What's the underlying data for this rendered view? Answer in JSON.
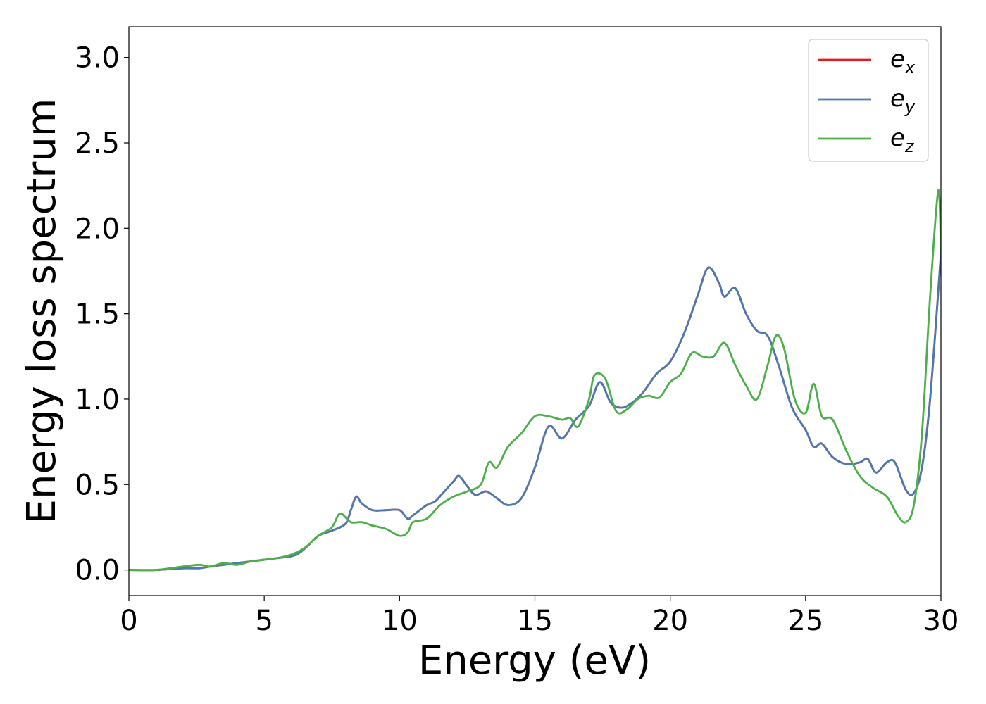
{
  "chart_data": {
    "type": "line",
    "xlabel": "Energy (eV)",
    "ylabel": "Energy loss spectrum",
    "xlim": [
      0,
      30
    ],
    "ylim": [
      -0.15,
      3.18
    ],
    "xticks": [
      0,
      5,
      10,
      15,
      20,
      25,
      30
    ],
    "xtick_labels": [
      "0",
      "5",
      "10",
      "15",
      "20",
      "25",
      "30"
    ],
    "yticks": [
      0.0,
      0.5,
      1.0,
      1.5,
      2.0,
      2.5,
      3.0
    ],
    "ytick_labels": [
      "0.0",
      "0.5",
      "1.0",
      "1.5",
      "2.0",
      "2.5",
      "3.0"
    ],
    "grid": false,
    "legend_position": "top-right",
    "series": [
      {
        "name": "e",
        "subscript": "x",
        "color": "#e41a1c",
        "x": [
          0,
          1,
          2,
          2.6,
          3,
          3.5,
          4,
          4.5,
          5,
          5.5,
          6,
          6.3,
          6.6,
          7,
          7.5,
          8,
          8.2,
          8.4,
          8.6,
          9,
          9.5,
          10,
          10.3,
          10.5,
          11,
          11.3,
          11.6,
          12,
          12.2,
          12.5,
          12.8,
          13.2,
          13.6,
          14,
          14.5,
          15,
          15.5,
          16,
          16.5,
          17,
          17.4,
          17.8,
          18.2,
          18.6,
          19,
          19.5,
          20,
          20.5,
          21,
          21.4,
          21.8,
          22,
          22.4,
          22.8,
          23.2,
          23.6,
          24,
          24.5,
          25,
          25.3,
          25.6,
          26,
          26.5,
          27,
          27.3,
          27.6,
          28,
          28.3,
          28.7,
          29,
          29.3,
          29.6,
          30
        ],
        "y": [
          0,
          0,
          0.01,
          0.01,
          0.02,
          0.03,
          0.04,
          0.05,
          0.06,
          0.07,
          0.08,
          0.1,
          0.14,
          0.2,
          0.23,
          0.27,
          0.35,
          0.43,
          0.39,
          0.35,
          0.35,
          0.35,
          0.3,
          0.32,
          0.38,
          0.4,
          0.45,
          0.52,
          0.55,
          0.49,
          0.44,
          0.46,
          0.42,
          0.38,
          0.42,
          0.6,
          0.84,
          0.77,
          0.88,
          0.96,
          1.1,
          0.98,
          0.95,
          0.98,
          1.04,
          1.15,
          1.22,
          1.38,
          1.6,
          1.77,
          1.68,
          1.6,
          1.65,
          1.5,
          1.4,
          1.37,
          1.2,
          0.95,
          0.82,
          0.72,
          0.74,
          0.66,
          0.62,
          0.63,
          0.65,
          0.57,
          0.63,
          0.63,
          0.47,
          0.45,
          0.6,
          1.0,
          1.85
        ]
      },
      {
        "name": "e",
        "subscript": "y",
        "color": "#4a79b4",
        "x": [
          0,
          1,
          2,
          2.6,
          3,
          3.5,
          4,
          4.5,
          5,
          5.5,
          6,
          6.3,
          6.6,
          7,
          7.5,
          8,
          8.2,
          8.4,
          8.6,
          9,
          9.5,
          10,
          10.3,
          10.5,
          11,
          11.3,
          11.6,
          12,
          12.2,
          12.5,
          12.8,
          13.2,
          13.6,
          14,
          14.5,
          15,
          15.5,
          16,
          16.5,
          17,
          17.4,
          17.8,
          18.2,
          18.6,
          19,
          19.5,
          20,
          20.5,
          21,
          21.4,
          21.8,
          22,
          22.4,
          22.8,
          23.2,
          23.6,
          24,
          24.5,
          25,
          25.3,
          25.6,
          26,
          26.5,
          27,
          27.3,
          27.6,
          28,
          28.3,
          28.7,
          29,
          29.3,
          29.6,
          30
        ],
        "y": [
          0,
          0,
          0.01,
          0.01,
          0.02,
          0.03,
          0.04,
          0.05,
          0.06,
          0.07,
          0.08,
          0.1,
          0.14,
          0.2,
          0.23,
          0.27,
          0.35,
          0.43,
          0.39,
          0.35,
          0.35,
          0.35,
          0.3,
          0.32,
          0.38,
          0.4,
          0.45,
          0.52,
          0.55,
          0.49,
          0.44,
          0.46,
          0.42,
          0.38,
          0.42,
          0.6,
          0.84,
          0.77,
          0.88,
          0.96,
          1.1,
          0.98,
          0.95,
          0.98,
          1.04,
          1.15,
          1.22,
          1.38,
          1.6,
          1.77,
          1.68,
          1.6,
          1.65,
          1.5,
          1.4,
          1.37,
          1.2,
          0.95,
          0.82,
          0.72,
          0.74,
          0.66,
          0.62,
          0.63,
          0.65,
          0.57,
          0.63,
          0.63,
          0.47,
          0.45,
          0.6,
          1.0,
          1.85
        ]
      },
      {
        "name": "e",
        "subscript": "z",
        "color": "#4daf4a",
        "x": [
          0,
          1,
          2,
          2.6,
          3,
          3.5,
          4,
          4.5,
          5,
          5.5,
          6,
          6.5,
          7,
          7.5,
          7.8,
          8.2,
          8.6,
          9,
          9.5,
          10,
          10.3,
          10.5,
          11,
          11.5,
          12,
          12.5,
          13,
          13.3,
          13.6,
          14,
          14.5,
          15,
          15.5,
          16,
          16.3,
          16.6,
          17,
          17.2,
          17.6,
          18,
          18.4,
          18.8,
          19.2,
          19.6,
          20,
          20.4,
          20.8,
          21.2,
          21.6,
          22,
          22.4,
          22.8,
          23.2,
          23.6,
          23.9,
          24.2,
          24.6,
          25,
          25.3,
          25.6,
          26,
          26.5,
          27,
          27.5,
          28,
          28.4,
          28.7,
          29,
          29.3,
          29.6,
          29.9,
          30
        ],
        "y": [
          0,
          0,
          0.02,
          0.03,
          0.02,
          0.04,
          0.03,
          0.05,
          0.06,
          0.07,
          0.09,
          0.13,
          0.2,
          0.25,
          0.33,
          0.28,
          0.28,
          0.26,
          0.24,
          0.2,
          0.22,
          0.28,
          0.3,
          0.38,
          0.43,
          0.46,
          0.5,
          0.63,
          0.6,
          0.72,
          0.8,
          0.9,
          0.9,
          0.88,
          0.89,
          0.84,
          1.0,
          1.14,
          1.12,
          0.93,
          0.94,
          1.0,
          1.02,
          1.01,
          1.1,
          1.15,
          1.27,
          1.25,
          1.25,
          1.33,
          1.2,
          1.08,
          1.0,
          1.2,
          1.37,
          1.3,
          1.0,
          0.92,
          1.09,
          0.9,
          0.88,
          0.7,
          0.55,
          0.48,
          0.43,
          0.32,
          0.28,
          0.38,
          0.8,
          1.6,
          2.22,
          1.85
        ]
      }
    ]
  }
}
